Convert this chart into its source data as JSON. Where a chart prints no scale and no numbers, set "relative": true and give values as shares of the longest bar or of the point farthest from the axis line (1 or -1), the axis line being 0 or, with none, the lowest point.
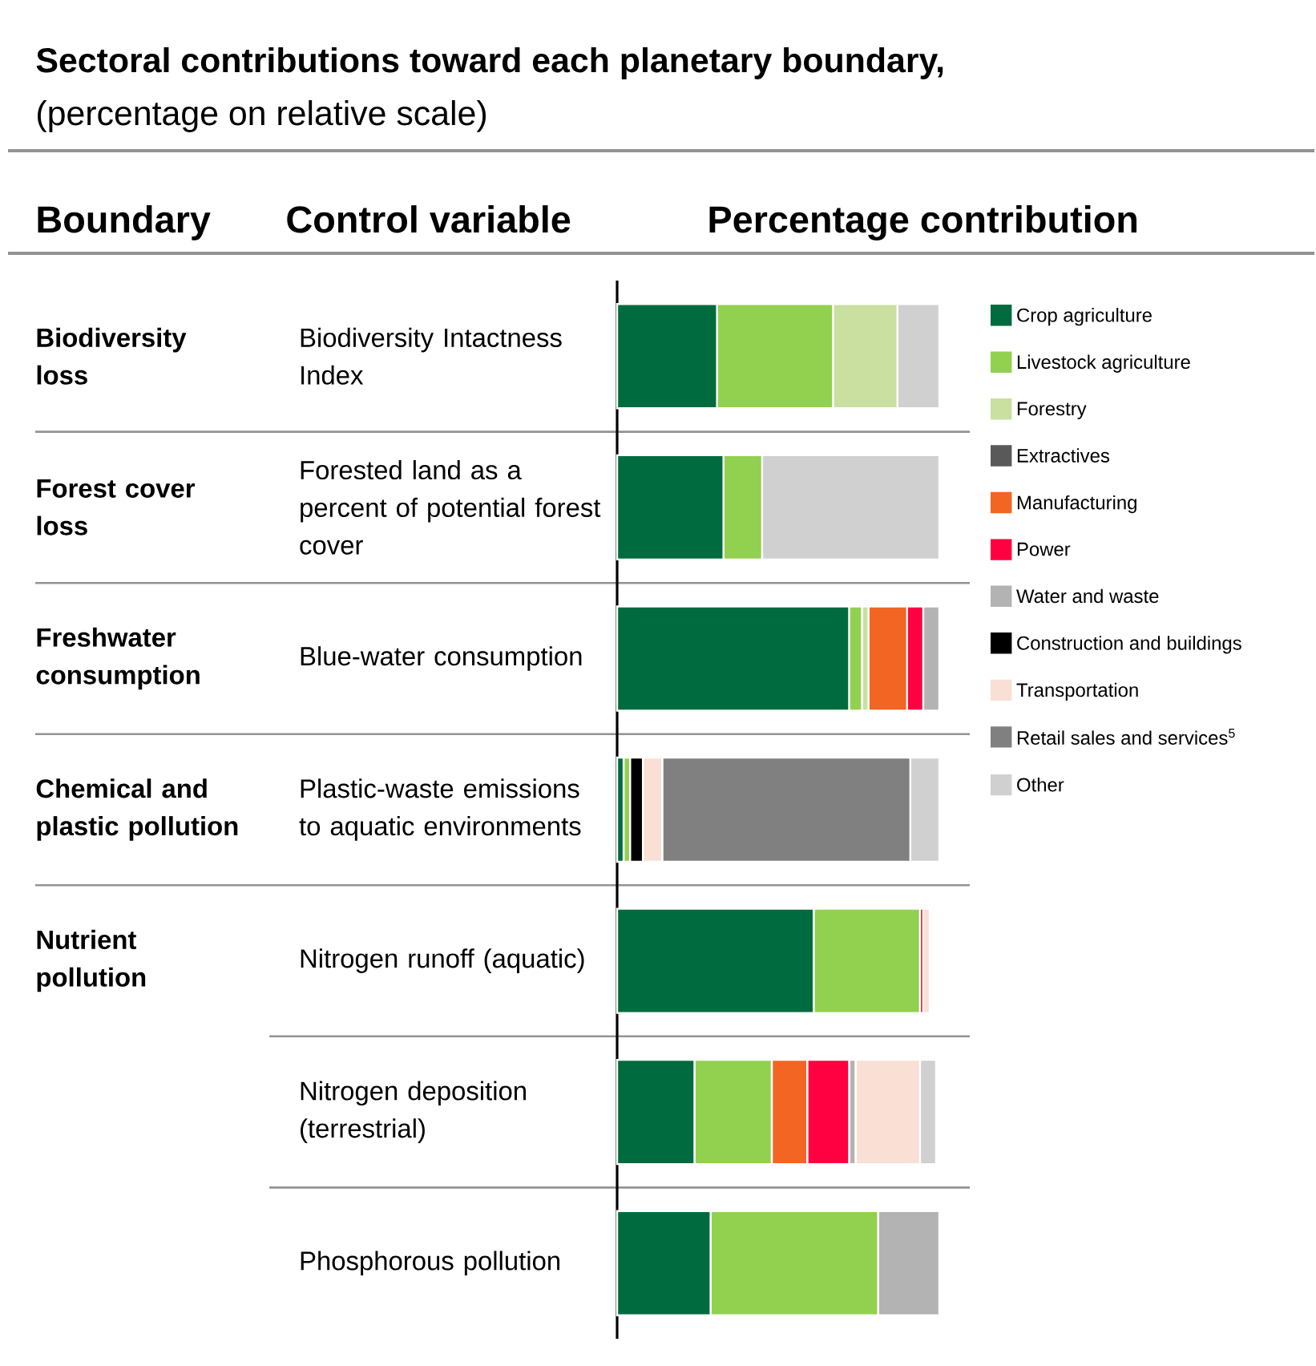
{
  "chart_data": {
    "type": "bar",
    "orientation": "horizontal",
    "stacked": true,
    "relative": true,
    "title": "Sectoral contributions toward each planetary boundary,",
    "subtitle": "(percentage on relative scale)",
    "categories": [
      "Biodiversity Intactness Index",
      "Forested land as a percent of potential forest cover",
      "Blue-water consumption",
      "Plastic-waste emissions to aquatic environments",
      "Nitrogen runoff (aquatic)",
      "Nitrogen deposition (terrestrial)",
      "Phosphorous pollution"
    ],
    "series": [
      {
        "name": "Crop agriculture",
        "color": "#006b3f",
        "values": [
          0.31,
          0.33,
          0.72,
          0.02,
          0.61,
          0.24,
          0.29
        ]
      },
      {
        "name": "Livestock agriculture",
        "color": "#92d050",
        "values": [
          0.36,
          0.12,
          0.04,
          0.02,
          0.33,
          0.24,
          0.52
        ]
      },
      {
        "name": "Forestry",
        "color": "#c9e0a0",
        "values": [
          0.2,
          null,
          0.02,
          null,
          null,
          null,
          null
        ]
      },
      {
        "name": "Extractives",
        "color": "#595959",
        "values": [
          null,
          null,
          null,
          null,
          null,
          null,
          null
        ]
      },
      {
        "name": "Manufacturing",
        "color": "#f26522",
        "values": [
          null,
          null,
          0.12,
          null,
          null,
          0.11,
          null
        ]
      },
      {
        "name": "Power",
        "color": "#ff0040",
        "values": [
          null,
          null,
          0.05,
          null,
          0.01,
          0.13,
          null
        ]
      },
      {
        "name": "Water and waste",
        "color": "#b3b3b3",
        "values": [
          null,
          null,
          0.05,
          null,
          null,
          0.02,
          0.19
        ]
      },
      {
        "name": "Construction and buildings",
        "color": "#000000",
        "values": [
          null,
          null,
          null,
          0.04,
          null,
          null,
          null
        ]
      },
      {
        "name": "Transportation",
        "color": "#fadfd4",
        "values": [
          null,
          null,
          null,
          0.06,
          0.02,
          0.2,
          null
        ]
      },
      {
        "name": "Retail sales and services$^{5}$",
        "color": "#808080",
        "values": [
          null,
          null,
          null,
          0.77,
          null,
          null,
          null
        ]
      },
      {
        "name": "Other",
        "color": "#d0d0d0",
        "values": [
          0.13,
          0.55,
          null,
          0.09,
          null,
          0.05,
          null
        ]
      }
    ],
    "legend": "right",
    "annotations": [
      "Boundary",
      "Control variable",
      "Percentage contribution",
      "Biodiversity loss",
      "Forest cover loss",
      "Freshwater consumption",
      "Chemical and plastic pollution",
      "Nutrient pollution"
    ]
  }
}
